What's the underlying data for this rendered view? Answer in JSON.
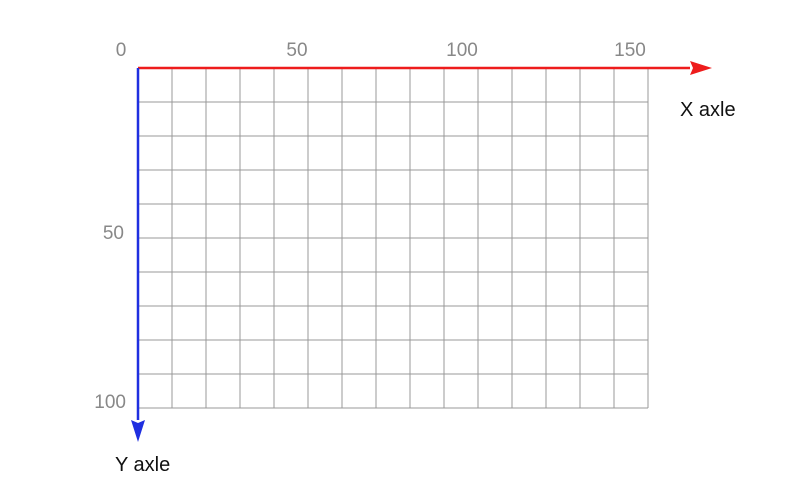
{
  "diagram": {
    "grid": {
      "x_range": [
        0,
        150
      ],
      "y_range": [
        0,
        100
      ],
      "step": 10
    },
    "x_axis": {
      "label": "X axle",
      "color": "#ee1c1c",
      "ticks": [
        "0",
        "50",
        "100",
        "150"
      ]
    },
    "y_axis": {
      "label": "Y axle",
      "color": "#1f2fe0",
      "ticks": [
        "50",
        "100"
      ]
    },
    "grid_color": "#999999"
  }
}
